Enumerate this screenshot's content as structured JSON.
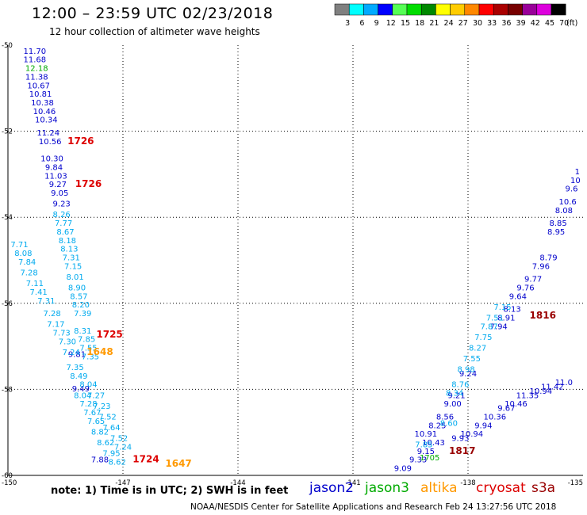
{
  "title": "12:00 – 23:59 UTC 02/23/2018",
  "subtitle": "12 hour collection of altimeter wave heights",
  "note": "note: 1) Time is in UTC; 2) SWH is in feet",
  "footer": "NOAA/NESDIS Center for Satellite Applications and Research    Feb 24 13:27:56 UTC 2018",
  "colorbar": {
    "unit": "(ft)",
    "labels": [
      "3",
      "6",
      "9",
      "12",
      "15",
      "18",
      "21",
      "24",
      "27",
      "30",
      "33",
      "36",
      "39",
      "42",
      "45",
      "70"
    ],
    "colors": [
      "#808080",
      "#00ffff",
      "#00aaff",
      "#0000ff",
      "#55ff55",
      "#00dd00",
      "#008800",
      "#ffff00",
      "#ffcc00",
      "#ff8800",
      "#ff0000",
      "#aa0000",
      "#770000",
      "#990099",
      "#dd00dd",
      "#000000"
    ]
  },
  "satellites": [
    {
      "name": "jason2",
      "color": "#0000cc"
    },
    {
      "name": "jason3",
      "color": "#00aa00"
    },
    {
      "name": "altika",
      "color": "#ff9900"
    },
    {
      "name": "cryosat",
      "color": "#dd0000"
    },
    {
      "name": "s3a",
      "color": "#990000"
    }
  ],
  "chart_data": {
    "type": "scatter",
    "xlim": [
      -150,
      -135
    ],
    "ylim": [
      -60,
      -50
    ],
    "x_ticks": [
      "-150",
      "-147",
      "-144",
      "-141",
      "-138",
      "-135"
    ],
    "y_ticks": [
      "-50",
      "-52",
      "-54",
      "-56",
      "-58",
      "-60"
    ],
    "grid": true,
    "series": [
      {
        "name": "jason2",
        "color": "#0000cc",
        "points": [
          {
            "x": -149.3,
            "y": -50.2,
            "label": "11.70"
          },
          {
            "x": -149.3,
            "y": -50.4,
            "label": "11.68"
          },
          {
            "x": -149.25,
            "y": -50.8,
            "label": "11.38"
          },
          {
            "x": -149.2,
            "y": -51.0,
            "label": "10.67"
          },
          {
            "x": -149.15,
            "y": -51.2,
            "label": "10.81"
          },
          {
            "x": -149.1,
            "y": -51.4,
            "label": "10.38"
          },
          {
            "x": -149.05,
            "y": -51.6,
            "label": "10.46"
          },
          {
            "x": -149.0,
            "y": -51.8,
            "label": "10.34"
          },
          {
            "x": -148.95,
            "y": -52.1,
            "label": "11.24"
          },
          {
            "x": -148.9,
            "y": -52.3,
            "label": "10.56"
          },
          {
            "x": -148.85,
            "y": -52.7,
            "label": "10.30"
          },
          {
            "x": -148.8,
            "y": -52.9,
            "label": "9.84"
          },
          {
            "x": -148.75,
            "y": -53.1,
            "label": "11.03"
          },
          {
            "x": -148.7,
            "y": -53.3,
            "label": "9.27"
          },
          {
            "x": -148.65,
            "y": -53.5,
            "label": "9.05"
          },
          {
            "x": -148.6,
            "y": -53.75,
            "label": "9.23"
          },
          {
            "x": -148.2,
            "y": -57.25,
            "label": "9.81"
          },
          {
            "x": -148.1,
            "y": -58.05,
            "label": "9.49"
          },
          {
            "x": -147.6,
            "y": -59.7,
            "label": "7.88"
          },
          {
            "x": -139.7,
            "y": -59.9,
            "label": "9.09"
          },
          {
            "x": -139.3,
            "y": -59.7,
            "label": "9.33"
          },
          {
            "x": -139.1,
            "y": -59.5,
            "label": "9.15"
          },
          {
            "x": -138.9,
            "y": -59.3,
            "label": "10.43"
          },
          {
            "x": -139.1,
            "y": -59.1,
            "label": "10.91"
          },
          {
            "x": -138.8,
            "y": -58.9,
            "label": "8.25"
          },
          {
            "x": -138.6,
            "y": -58.7,
            "label": "8.56"
          },
          {
            "x": -138.4,
            "y": -58.4,
            "label": "9.00"
          },
          {
            "x": -138.3,
            "y": -58.2,
            "label": "9.21"
          },
          {
            "x": -138.0,
            "y": -57.7,
            "label": "9.24"
          },
          {
            "x": -137.2,
            "y": -56.6,
            "label": "7.94"
          },
          {
            "x": -137.0,
            "y": -56.4,
            "label": "8.91"
          },
          {
            "x": -136.85,
            "y": -56.2,
            "label": "8.13"
          },
          {
            "x": -136.7,
            "y": -55.9,
            "label": "9.64"
          },
          {
            "x": -136.5,
            "y": -55.7,
            "label": "9.76"
          },
          {
            "x": -136.3,
            "y": -55.5,
            "label": "9.77"
          },
          {
            "x": -136.1,
            "y": -55.2,
            "label": "7.96"
          },
          {
            "x": -135.9,
            "y": -55.0,
            "label": "8.79"
          },
          {
            "x": -135.7,
            "y": -54.4,
            "label": "8.95"
          },
          {
            "x": -135.65,
            "y": -54.2,
            "label": "8.85"
          },
          {
            "x": -135.5,
            "y": -53.9,
            "label": "8.08"
          },
          {
            "x": -135.4,
            "y": -53.7,
            "label": "10.6"
          },
          {
            "x": -135.3,
            "y": -53.4,
            "label": "9.6"
          },
          {
            "x": -135.2,
            "y": -53.2,
            "label": "10"
          },
          {
            "x": -135.15,
            "y": -53.0,
            "label": "1"
          },
          {
            "x": -138.2,
            "y": -59.2,
            "label": "9.93"
          },
          {
            "x": -137.9,
            "y": -59.1,
            "label": "10.94"
          },
          {
            "x": -137.6,
            "y": -58.9,
            "label": "9.94"
          },
          {
            "x": -137.3,
            "y": -58.7,
            "label": "10.36"
          },
          {
            "x": -137.0,
            "y": -58.5,
            "label": "9.67"
          },
          {
            "x": -136.75,
            "y": -58.4,
            "label": "10.46"
          },
          {
            "x": -136.45,
            "y": -58.2,
            "label": "11.35"
          },
          {
            "x": -136.1,
            "y": -58.1,
            "label": "10.94"
          },
          {
            "x": -135.8,
            "y": -58.0,
            "label": "11.42"
          },
          {
            "x": -135.5,
            "y": -57.9,
            "label": "11.0"
          }
        ]
      },
      {
        "name": "altika",
        "color": "#00aaee",
        "points": [
          {
            "x": -148.6,
            "y": -54.0,
            "label": "8.26"
          },
          {
            "x": -148.55,
            "y": -54.2,
            "label": "7.77"
          },
          {
            "x": -148.5,
            "y": -54.4,
            "label": "8.67"
          },
          {
            "x": -148.45,
            "y": -54.6,
            "label": "8.18"
          },
          {
            "x": -148.4,
            "y": -54.8,
            "label": "8.13"
          },
          {
            "x": -148.35,
            "y": -55.0,
            "label": "7.31"
          },
          {
            "x": -148.3,
            "y": -55.2,
            "label": "7.15"
          },
          {
            "x": -148.25,
            "y": -55.45,
            "label": "8.01"
          },
          {
            "x": -148.2,
            "y": -55.7,
            "label": "8.90"
          },
          {
            "x": -148.15,
            "y": -55.9,
            "label": "8.57"
          },
          {
            "x": -148.1,
            "y": -56.1,
            "label": "8.20"
          },
          {
            "x": -148.05,
            "y": -56.3,
            "label": "7.39"
          },
          {
            "x": -148.05,
            "y": -56.7,
            "label": "8.31"
          },
          {
            "x": -147.95,
            "y": -56.9,
            "label": "7.85"
          },
          {
            "x": -147.9,
            "y": -57.1,
            "label": "7.55"
          },
          {
            "x": -147.85,
            "y": -57.3,
            "label": "7.35"
          },
          {
            "x": -147.9,
            "y": -57.95,
            "label": "8.04"
          },
          {
            "x": -147.7,
            "y": -58.2,
            "label": "7.27"
          },
          {
            "x": -147.55,
            "y": -58.45,
            "label": "7.23"
          },
          {
            "x": -147.4,
            "y": -58.7,
            "label": "7.52"
          },
          {
            "x": -147.3,
            "y": -58.95,
            "label": "7.64"
          },
          {
            "x": -147.1,
            "y": -59.2,
            "label": "7.52"
          },
          {
            "x": -147.0,
            "y": -59.4,
            "label": "7.24"
          },
          {
            "x": -149.7,
            "y": -54.7,
            "label": "7.71"
          },
          {
            "x": -149.6,
            "y": -54.9,
            "label": "8.08"
          },
          {
            "x": -149.5,
            "y": -55.1,
            "label": "7.84"
          },
          {
            "x": -149.45,
            "y": -55.35,
            "label": "7.28"
          },
          {
            "x": -149.3,
            "y": -55.6,
            "label": "7.11"
          },
          {
            "x": -149.2,
            "y": -55.8,
            "label": "7.41"
          },
          {
            "x": -149.0,
            "y": -56.0,
            "label": "7.31"
          },
          {
            "x": -148.85,
            "y": -56.3,
            "label": "7.28"
          },
          {
            "x": -148.75,
            "y": -56.55,
            "label": "7.17"
          },
          {
            "x": -148.6,
            "y": -56.75,
            "label": "7.73"
          },
          {
            "x": -148.45,
            "y": -56.95,
            "label": "7.30"
          },
          {
            "x": -148.35,
            "y": -57.2,
            "label": "7.24"
          },
          {
            "x": -148.25,
            "y": -57.55,
            "label": "7.35"
          },
          {
            "x": -148.15,
            "y": -57.75,
            "label": "8.49"
          },
          {
            "x": -148.05,
            "y": -58.2,
            "label": "8.04"
          },
          {
            "x": -147.9,
            "y": -58.4,
            "label": "7.28"
          },
          {
            "x": -147.8,
            "y": -58.6,
            "label": "7.67"
          },
          {
            "x": -147.7,
            "y": -58.8,
            "label": "7.65"
          },
          {
            "x": -147.6,
            "y": -59.05,
            "label": "8.82"
          },
          {
            "x": -147.45,
            "y": -59.3,
            "label": "8.62"
          },
          {
            "x": -147.3,
            "y": -59.55,
            "label": "7.95"
          },
          {
            "x": -147.15,
            "y": -59.75,
            "label": "8.62"
          },
          {
            "x": -137.1,
            "y": -56.15,
            "label": "7.15"
          },
          {
            "x": -137.3,
            "y": -56.4,
            "label": "7.51"
          },
          {
            "x": -137.45,
            "y": -56.6,
            "label": "7.87"
          },
          {
            "x": -137.6,
            "y": -56.85,
            "label": "7.75"
          },
          {
            "x": -137.75,
            "y": -57.1,
            "label": "8.27"
          },
          {
            "x": -137.9,
            "y": -57.35,
            "label": "7.55"
          },
          {
            "x": -138.05,
            "y": -57.6,
            "label": "8.98"
          },
          {
            "x": -138.2,
            "y": -57.95,
            "label": "8.76"
          },
          {
            "x": -138.35,
            "y": -58.15,
            "label": "8.34"
          },
          {
            "x": -138.5,
            "y": -58.85,
            "label": "8.60"
          },
          {
            "x": -139.15,
            "y": -59.35,
            "label": "7.85"
          }
        ]
      },
      {
        "name": "jason3",
        "color": "#00aa00",
        "points": [
          {
            "x": -149.25,
            "y": -50.6,
            "label": "12.18"
          },
          {
            "x": -139.0,
            "y": -59.65,
            "label": "1705"
          }
        ]
      },
      {
        "name": "cryosat",
        "color": "#dd0000",
        "points": [
          {
            "x": -148.1,
            "y": -52.3,
            "label": "1726"
          },
          {
            "x": -147.9,
            "y": -53.3,
            "label": "1726"
          },
          {
            "x": -147.35,
            "y": -56.8,
            "label": "1725"
          },
          {
            "x": -146.4,
            "y": -59.7,
            "label": "1724"
          }
        ]
      },
      {
        "name": "altika-time",
        "color": "#ff9900",
        "points": [
          {
            "x": -147.6,
            "y": -57.2,
            "label": "1648"
          },
          {
            "x": -145.55,
            "y": -59.8,
            "label": "1647"
          }
        ]
      },
      {
        "name": "s3a",
        "color": "#990000",
        "points": [
          {
            "x": -136.05,
            "y": -56.35,
            "label": "1816"
          },
          {
            "x": -138.15,
            "y": -59.5,
            "label": "1817"
          }
        ]
      }
    ]
  }
}
